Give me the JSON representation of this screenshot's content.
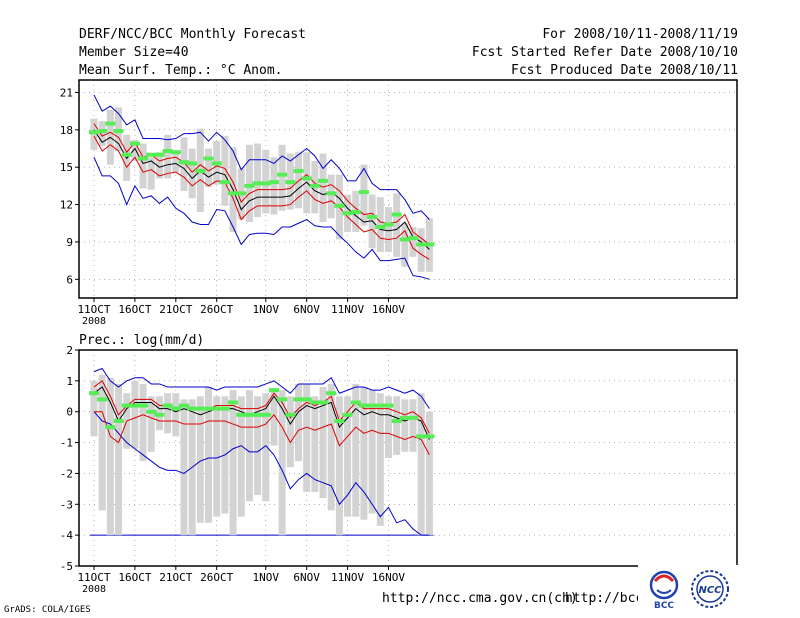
{
  "header": {
    "line1_left": "DERF/NCC/BCC Monthly Forecast",
    "line2_left": "Member Size=40",
    "line3_left": "Mean Surf. Temp.: °C Anom.",
    "line1_right": "For 2008/10/11-2008/11/19",
    "line2_right": "Fcst Started Refer Date 2008/10/10",
    "line3_right": "Fcst Produced Date 2008/10/11"
  },
  "footer": {
    "grads_credit": "GrADS: COLA/IGES",
    "url_ncc": "http://ncc.cma.gov.cn(ch)",
    "url_bcc": "http://bcc.c"
  },
  "logos": {
    "bcc_label": "BCC",
    "ncc_label": "NCC"
  },
  "colors": {
    "box": "#d3d3d3",
    "median": "#55ee55",
    "mean": "#000000",
    "inner": "#dd0000",
    "outer": "#0000cc",
    "grid": "#888888",
    "baseline": "#0000cc"
  },
  "chart_data": [
    {
      "type": "line",
      "title": "Mean Surf. Temp.: °C Anom.",
      "x_tick_labels": [
        "11OCT",
        "16OCT",
        "21OCT",
        "26OCT",
        "1NOV",
        "6NOV",
        "11NOV",
        "16NOV"
      ],
      "x_tick_days": [
        1,
        6,
        11,
        16,
        22,
        27,
        32,
        37
      ],
      "x_sublabel": "2008",
      "ylim": [
        4.5,
        22
      ],
      "y_ticks": [
        6,
        9,
        12,
        15,
        18,
        21
      ],
      "days": 40,
      "series": [
        {
          "name": "mean",
          "values": [
            18.0,
            17.0,
            17.4,
            16.9,
            15.7,
            16.5,
            15.3,
            15.5,
            15.0,
            15.2,
            15.3,
            14.9,
            14.1,
            14.7,
            14.2,
            14.6,
            14.4,
            13.2,
            11.6,
            12.3,
            12.6,
            12.6,
            12.6,
            12.6,
            12.7,
            13.3,
            13.8,
            13.1,
            12.8,
            13.0,
            12.5,
            11.7,
            11.1,
            10.6,
            10.7,
            10.0,
            9.9,
            10.0,
            10.6,
            9.4,
            9.0,
            8.4
          ]
        },
        {
          "name": "inner_upper",
          "values": [
            18.5,
            17.5,
            17.8,
            17.4,
            16.2,
            17.0,
            15.8,
            16.0,
            15.5,
            15.7,
            15.8,
            15.4,
            14.6,
            15.2,
            14.7,
            15.1,
            14.9,
            13.8,
            12.2,
            12.9,
            13.2,
            13.2,
            13.2,
            13.2,
            13.3,
            13.9,
            14.4,
            13.7,
            13.4,
            13.6,
            13.1,
            12.3,
            11.7,
            11.2,
            11.3,
            10.6,
            10.5,
            10.6,
            11.2,
            9.8,
            9.3,
            8.8
          ]
        },
        {
          "name": "inner_lower",
          "values": [
            17.5,
            16.3,
            16.8,
            16.3,
            15.0,
            15.8,
            14.6,
            14.8,
            14.3,
            14.5,
            14.6,
            14.2,
            13.5,
            14.0,
            13.5,
            13.9,
            13.8,
            12.5,
            10.8,
            11.5,
            11.9,
            11.9,
            11.9,
            11.9,
            12.0,
            12.6,
            13.1,
            12.4,
            12.1,
            12.3,
            11.8,
            11.0,
            10.4,
            9.8,
            10.0,
            9.3,
            9.2,
            9.3,
            9.9,
            8.5,
            8.0,
            7.6
          ]
        },
        {
          "name": "outer_upper",
          "values": [
            20.8,
            19.5,
            19.9,
            19.3,
            18.4,
            18.8,
            17.3,
            17.3,
            17.3,
            17.2,
            17.3,
            17.7,
            17.7,
            17.8,
            17.1,
            17.8,
            17.2,
            16.3,
            14.8,
            15.6,
            15.6,
            15.6,
            15.3,
            15.9,
            15.5,
            16.0,
            16.5,
            15.9,
            14.9,
            15.6,
            14.9,
            13.9,
            13.9,
            14.9,
            13.7,
            13.2,
            13.2,
            13.2,
            12.4,
            11.3,
            11.5,
            10.8
          ]
        },
        {
          "name": "outer_lower",
          "values": [
            15.8,
            14.3,
            14.3,
            13.7,
            12.0,
            13.5,
            12.5,
            12.7,
            12.1,
            12.6,
            11.7,
            11.3,
            10.6,
            10.4,
            10.4,
            11.6,
            11.5,
            10.2,
            8.8,
            9.6,
            9.7,
            9.7,
            9.6,
            10.2,
            10.2,
            10.5,
            10.8,
            10.3,
            10.2,
            10.2,
            9.5,
            8.9,
            8.2,
            7.7,
            8.4,
            7.5,
            7.5,
            7.6,
            7.7,
            6.3,
            6.2,
            6.0
          ]
        },
        {
          "name": "median",
          "values": [
            17.8,
            17.9,
            18.5,
            17.9,
            16.0,
            16.9,
            15.7,
            16.0,
            16.0,
            16.3,
            16.2,
            15.4,
            15.3,
            14.7,
            15.7,
            15.3,
            13.8,
            12.9,
            12.9,
            13.5,
            13.7,
            13.7,
            13.8,
            14.4,
            13.8,
            14.7,
            14.1,
            13.5,
            13.9,
            12.9,
            11.9,
            11.3,
            11.4,
            13.0,
            11.0,
            10.2,
            10.4,
            11.2,
            9.2,
            9.3,
            8.8,
            8.8
          ]
        },
        {
          "name": "box_top",
          "values": [
            18.9,
            18.7,
            19.6,
            19.8,
            17.6,
            17.2,
            16.9,
            15.8,
            16.2,
            17.6,
            16.3,
            17.4,
            16.5,
            18.1,
            16.5,
            17.1,
            17.5,
            16.6,
            14.9,
            16.8,
            16.9,
            16.4,
            15.8,
            16.8,
            16.1,
            16.2,
            16.2,
            15.5,
            16.1,
            14.4,
            14.4,
            12.8,
            13.1,
            15.2,
            12.8,
            12.6,
            11.8,
            12.9,
            10.5,
            10.2,
            10.1,
            10.9
          ]
        },
        {
          "name": "box_bottom",
          "values": [
            16.4,
            16.7,
            15.2,
            16.3,
            13.9,
            15.5,
            13.3,
            13.2,
            14.1,
            14.1,
            14.6,
            13.1,
            12.5,
            11.4,
            13.4,
            13.6,
            11.9,
            9.8,
            10.8,
            10.6,
            11.0,
            11.3,
            11.2,
            11.5,
            11.6,
            11.7,
            11.3,
            11.3,
            10.6,
            10.9,
            9.2,
            9.8,
            9.8,
            10.3,
            8.5,
            8.2,
            8.2,
            7.8,
            7.0,
            7.8,
            6.6,
            6.6
          ]
        }
      ]
    },
    {
      "type": "line",
      "title": "Prec.: log(mm/d)",
      "x_tick_labels": [
        "11OCT",
        "16OCT",
        "21OCT",
        "26OCT",
        "1NOV",
        "6NOV",
        "11NOV",
        "16NOV"
      ],
      "x_tick_days": [
        1,
        6,
        11,
        16,
        22,
        27,
        32,
        37
      ],
      "x_sublabel": "2008",
      "ylim": [
        -5,
        2
      ],
      "y_ticks": [
        -5,
        -4,
        -3,
        -2,
        -1,
        0,
        1,
        2
      ],
      "days": 40,
      "baseline": -4,
      "series": [
        {
          "name": "mean",
          "values": [
            0.6,
            0.8,
            0.3,
            -0.3,
            0.1,
            0.3,
            0.3,
            0.3,
            0.1,
            0.1,
            0.0,
            0.1,
            0.0,
            -0.1,
            0.0,
            0.1,
            0.1,
            0.1,
            0.0,
            -0.1,
            0.0,
            0.1,
            0.5,
            0.1,
            -0.4,
            0.0,
            0.2,
            0.1,
            0.2,
            0.3,
            -0.5,
            -0.2,
            0.1,
            -0.1,
            0.0,
            -0.1,
            -0.1,
            -0.2,
            -0.3,
            -0.2,
            -0.3,
            -0.9
          ]
        },
        {
          "name": "inner_upper",
          "values": [
            0.8,
            1.0,
            0.5,
            -0.1,
            0.2,
            0.4,
            0.4,
            0.4,
            0.2,
            0.2,
            0.1,
            0.2,
            0.1,
            0.1,
            0.1,
            0.2,
            0.2,
            0.2,
            0.1,
            0.1,
            0.1,
            0.2,
            0.6,
            0.3,
            -0.2,
            0.1,
            0.3,
            0.2,
            0.3,
            0.5,
            -0.3,
            0.0,
            0.3,
            0.1,
            0.1,
            0.1,
            0.1,
            0.0,
            -0.1,
            0.0,
            -0.2,
            -0.7
          ]
        },
        {
          "name": "inner_lower",
          "values": [
            0.0,
            0.0,
            -0.8,
            -1.0,
            -0.3,
            -0.2,
            -0.1,
            -0.2,
            -0.3,
            -0.3,
            -0.3,
            -0.4,
            -0.4,
            -0.4,
            -0.3,
            -0.3,
            -0.3,
            -0.4,
            -0.5,
            -0.5,
            -0.5,
            -0.4,
            -0.1,
            -0.5,
            -1.0,
            -0.6,
            -0.5,
            -0.6,
            -0.5,
            -0.4,
            -1.1,
            -0.8,
            -0.5,
            -0.7,
            -0.6,
            -0.7,
            -0.7,
            -0.8,
            -0.9,
            -0.8,
            -0.9,
            -1.4
          ]
        },
        {
          "name": "outer_upper",
          "values": [
            1.3,
            1.4,
            1.0,
            0.8,
            1.0,
            1.1,
            1.1,
            0.9,
            0.9,
            0.8,
            0.8,
            0.8,
            0.8,
            0.8,
            0.8,
            0.7,
            0.8,
            0.8,
            0.8,
            0.8,
            0.8,
            0.9,
            1.0,
            0.8,
            0.6,
            0.9,
            0.9,
            0.9,
            0.9,
            1.1,
            0.6,
            0.7,
            0.8,
            0.8,
            0.7,
            0.7,
            0.8,
            0.7,
            0.6,
            0.7,
            0.5,
            0.1
          ]
        },
        {
          "name": "outer_lower",
          "values": [
            0.0,
            -0.3,
            -0.4,
            -0.7,
            -1.0,
            -1.2,
            -1.4,
            -1.6,
            -1.8,
            -1.9,
            -1.9,
            -2.0,
            -1.8,
            -1.6,
            -1.5,
            -1.5,
            -1.4,
            -1.2,
            -1.1,
            -1.3,
            -1.3,
            -1.1,
            -1.4,
            -1.9,
            -2.5,
            -2.2,
            -2.0,
            -2.2,
            -2.3,
            -2.4,
            -3.0,
            -2.7,
            -2.3,
            -2.6,
            -3.0,
            -3.4,
            -3.1,
            -3.6,
            -3.5,
            -3.8,
            -4.0,
            -4.0
          ]
        },
        {
          "name": "median",
          "values": [
            0.6,
            0.4,
            -0.5,
            -0.3,
            0.2,
            0.2,
            0.2,
            0.0,
            -0.1,
            0.2,
            0.1,
            0.2,
            0.1,
            0.1,
            0.1,
            0.1,
            0.1,
            0.3,
            -0.1,
            -0.1,
            -0.1,
            -0.1,
            0.7,
            0.4,
            -0.1,
            0.4,
            0.4,
            0.3,
            0.3,
            0.6,
            -0.3,
            -0.1,
            0.3,
            0.2,
            0.2,
            0.2,
            0.2,
            -0.3,
            -0.2,
            -0.2,
            -0.8,
            -0.8
          ]
        },
        {
          "name": "box_top",
          "values": [
            1.0,
            1.2,
            1.1,
            0.9,
            0.6,
            1.0,
            0.9,
            0.5,
            0.5,
            0.6,
            0.6,
            0.4,
            0.4,
            0.5,
            0.8,
            0.5,
            0.5,
            0.7,
            0.5,
            0.7,
            0.5,
            0.6,
            0.7,
            0.7,
            0.5,
            0.9,
            0.9,
            0.5,
            0.8,
            0.9,
            0.5,
            0.5,
            0.9,
            0.8,
            0.7,
            0.6,
            0.5,
            0.5,
            0.4,
            0.4,
            0.6,
            0.0
          ]
        },
        {
          "name": "box_bottom",
          "values": [
            -0.8,
            -3.2,
            -4.0,
            -4.0,
            -1.2,
            -1.2,
            -1.6,
            -1.3,
            -0.6,
            -0.7,
            -0.8,
            -4.0,
            -4.0,
            -3.6,
            -3.6,
            -3.4,
            -3.3,
            -4.0,
            -3.4,
            -2.9,
            -2.7,
            -2.9,
            -1.1,
            -4.0,
            -1.8,
            -1.6,
            -2.6,
            -2.6,
            -2.8,
            -3.2,
            -4.0,
            -3.4,
            -3.4,
            -3.5,
            -3.3,
            -3.7,
            -1.5,
            -1.4,
            -1.3,
            -1.3,
            -4.0,
            -4.0
          ]
        }
      ]
    }
  ]
}
